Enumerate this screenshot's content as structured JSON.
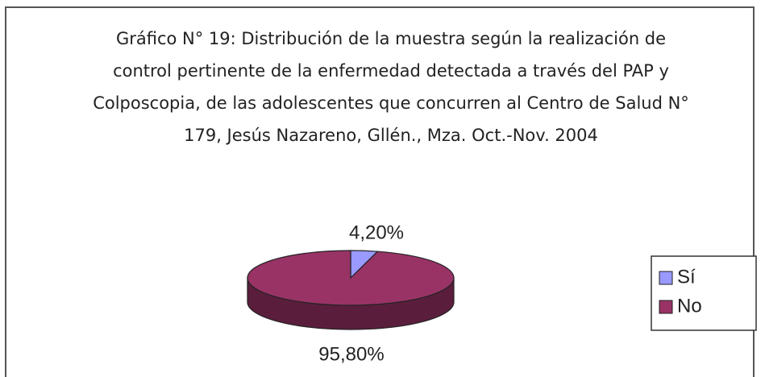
{
  "chart_data": {
    "type": "pie",
    "title": "Gráfico N° 19: Distribución de la muestra según la realización de control pertinente de la enfermedad detectada a través del PAP y Colposcopia, de las adolescentes que concurren al Centro de Salud N° 179, Jesús Nazareno, Gllén., Mza. Oct.-Nov. 2004",
    "categories": [
      "Sí",
      "No"
    ],
    "values": [
      4.2,
      95.8
    ],
    "value_labels": [
      "4,20%",
      "95,80%"
    ],
    "colors": [
      "#9999ff",
      "#993366"
    ],
    "legend": "right"
  }
}
